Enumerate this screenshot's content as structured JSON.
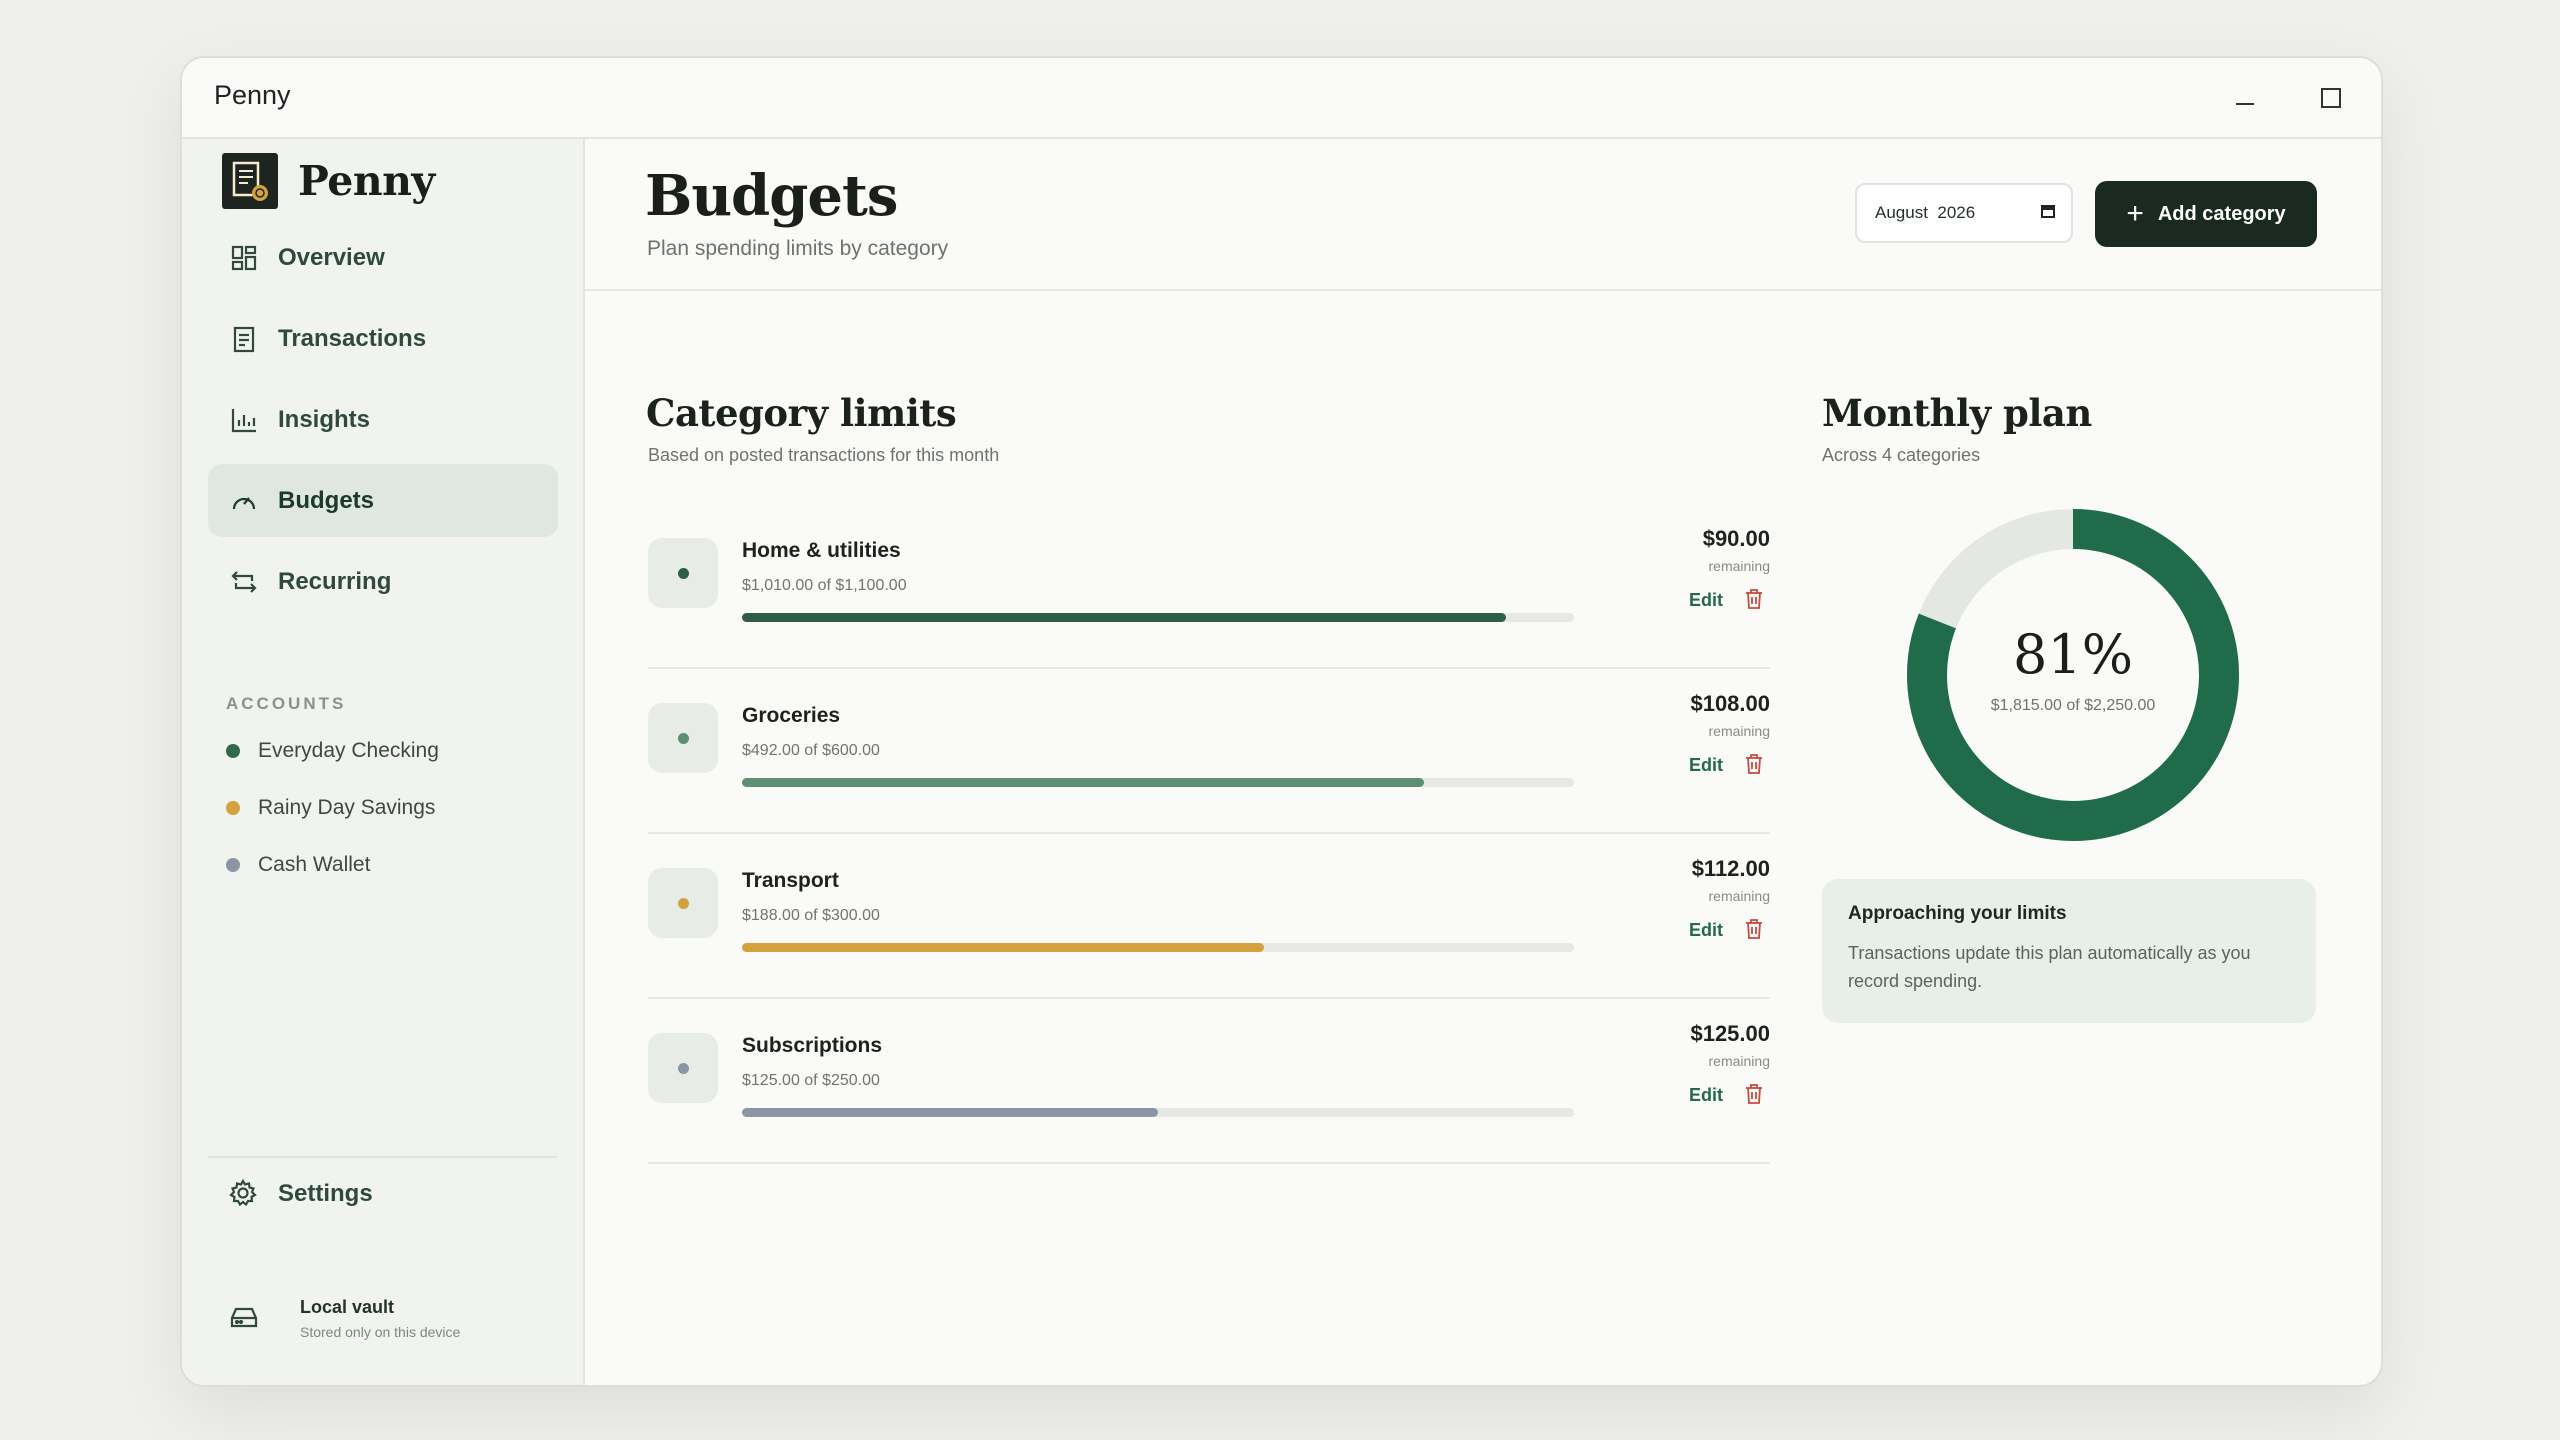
{
  "window": {
    "title": "Penny"
  },
  "brand": {
    "name": "Penny"
  },
  "nav": [
    {
      "label": "Overview",
      "icon": "grid-icon"
    },
    {
      "label": "Transactions",
      "icon": "receipt-icon"
    },
    {
      "label": "Insights",
      "icon": "bar-chart-icon"
    },
    {
      "label": "Budgets",
      "icon": "gauge-icon",
      "active": true
    },
    {
      "label": "Recurring",
      "icon": "repeat-icon"
    }
  ],
  "accounts": {
    "heading": "ACCOUNTS",
    "items": [
      {
        "label": "Everyday Checking",
        "color": "#2f6b4b"
      },
      {
        "label": "Rainy Day Savings",
        "color": "#d3a23f"
      },
      {
        "label": "Cash Wallet",
        "color": "#8c95a3"
      }
    ]
  },
  "settings": {
    "label": "Settings"
  },
  "vault": {
    "title": "Local vault",
    "subtitle": "Stored only on this device"
  },
  "header": {
    "title": "Budgets",
    "subtitle": "Plan spending limits by category",
    "month": "August  2026",
    "add_label": "Add category"
  },
  "limits": {
    "title": "Category limits",
    "subtitle": "Based on posted transactions for this month",
    "remaining_label": "remaining",
    "edit_label": "Edit",
    "categories": [
      {
        "name": "Home & utilities",
        "spent": "$1,010.00 of $1,100.00",
        "remaining": "$90.00",
        "progress": 0.918,
        "color": "#2f5e47"
      },
      {
        "name": "Groceries",
        "spent": "$492.00 of $600.00",
        "remaining": "$108.00",
        "progress": 0.82,
        "color": "#5e8f73"
      },
      {
        "name": "Transport",
        "spent": "$188.00 of $300.00",
        "remaining": "$112.00",
        "progress": 0.627,
        "color": "#d3a23f"
      },
      {
        "name": "Subscriptions",
        "spent": "$125.00 of $250.00",
        "remaining": "$125.00",
        "progress": 0.5,
        "color": "#8c95a3"
      }
    ]
  },
  "plan": {
    "title": "Monthly plan",
    "subtitle": "Across 4 categories",
    "percent": "81%",
    "percent_value": 0.81,
    "amount": "$1,815.00 of $2,250.00",
    "ring_color": "#1f6b4a",
    "track_color": "#e4e8e3"
  },
  "tip": {
    "title": "Approaching your limits",
    "body": "Transactions update this plan automatically as you record spending."
  }
}
